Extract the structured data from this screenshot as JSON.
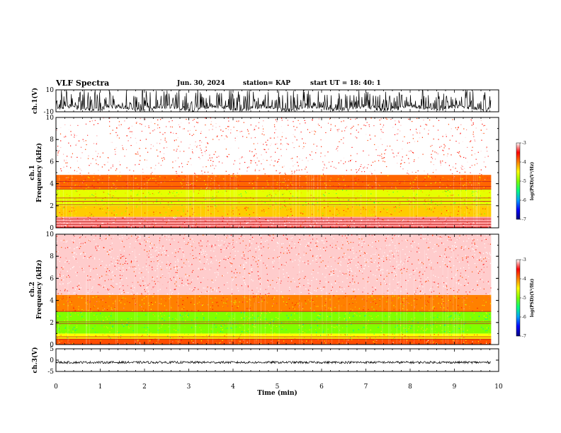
{
  "header": {
    "title": "VLF Spectra",
    "date": "Jun. 30, 2024",
    "station": "station= KAP",
    "start": "start  UT =   18: 40: 1"
  },
  "chart_data": [
    {
      "type": "line",
      "panel": "ch1-waveform",
      "ylabel": "ch.1(V)",
      "ylim": [
        -10,
        10
      ],
      "yticks": [
        "10",
        "-10"
      ],
      "xlim": [
        0,
        10
      ],
      "x_end_data": 9.83,
      "description_values": {
        "envelope_min": -9.5,
        "envelope_max": 10
      }
    },
    {
      "type": "heatmap",
      "panel": "ch1-spectrogram",
      "ylabel": "ch.1\nFrequency (kHz)",
      "ylabel_line1": "ch.1",
      "ylabel_line2": "Frequency (kHz)",
      "ylim": [
        0,
        10
      ],
      "yticks": [
        "0",
        "2",
        "4",
        "6",
        "8",
        "10"
      ],
      "xlim": [
        0,
        10
      ],
      "x_end_data": 9.83,
      "bands_khz": [
        {
          "from": 0,
          "to": 0.1,
          "level": -3.5
        },
        {
          "from": 0.1,
          "to": 1.0,
          "level": -3.2
        },
        {
          "from": 1.0,
          "to": 2.0,
          "level": -4.3
        },
        {
          "from": 2.0,
          "to": 3.5,
          "level": -4.6
        },
        {
          "from": 3.5,
          "to": 4.8,
          "level": -3.9
        },
        {
          "from": 4.8,
          "to": 10,
          "level": -3.0
        }
      ],
      "lines_khz": [
        0.3,
        0.55,
        0.8,
        2.1,
        2.4,
        2.7,
        3.5,
        3.75,
        4.2
      ]
    },
    {
      "type": "heatmap",
      "panel": "ch2-spectrogram",
      "ylabel_line1": "ch.2",
      "ylabel_line2": "Frequency (kHz)",
      "ylim": [
        0,
        10
      ],
      "yticks": [
        "0",
        "2",
        "4",
        "6",
        "8",
        "10"
      ],
      "xlim": [
        0,
        10
      ],
      "x_end_data": 9.83,
      "bands_khz": [
        {
          "from": 0,
          "to": 0.5,
          "level": -3.8
        },
        {
          "from": 0.5,
          "to": 1.0,
          "level": -4.5
        },
        {
          "from": 1.0,
          "to": 3.0,
          "level": -5.0
        },
        {
          "from": 3.0,
          "to": 4.5,
          "level": -4.0
        },
        {
          "from": 4.5,
          "to": 10,
          "level": -3.1
        }
      ],
      "lines_khz": [
        0.5,
        0.7,
        1.9,
        2.05,
        3.0
      ]
    },
    {
      "type": "line",
      "panel": "ch3-waveform",
      "ylabel": "ch.3(V)",
      "ylim": [
        -5,
        5
      ],
      "yticks": [
        "5",
        "0",
        "-5"
      ],
      "xlim": [
        0,
        10
      ],
      "x_end_data": 9.83,
      "xlabel": "Time (min)",
      "xticks": [
        "0",
        "1",
        "2",
        "3",
        "4",
        "5",
        "6",
        "7",
        "8",
        "9",
        "10"
      ],
      "description_values": {
        "envelope_min": -1.5,
        "envelope_max": -0.5
      }
    }
  ],
  "colorbar": {
    "label": "log(PSD)(V²/Hz)",
    "range": [
      -7,
      -3
    ],
    "ticks": [
      "-3",
      "-4",
      "-5",
      "-6",
      "-7"
    ],
    "colors": [
      "#000080",
      "#0000ff",
      "#00a0ff",
      "#00ff80",
      "#80ff00",
      "#ffff00",
      "#ff8000",
      "#ff0000",
      "#ffffff"
    ]
  }
}
